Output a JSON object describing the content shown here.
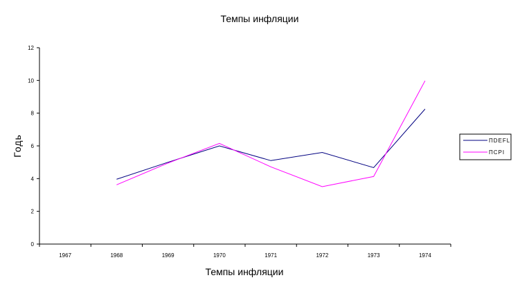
{
  "chart_data": {
    "type": "line",
    "title": "Темпы инфляции",
    "xlabel": "Темпы инфляции",
    "ylabel": "Годь",
    "categories": [
      "1967",
      "1968",
      "1969",
      "1970",
      "1971",
      "1972",
      "1973",
      "1974"
    ],
    "ylim": [
      0,
      12
    ],
    "yticks": [
      0,
      2,
      4,
      6,
      8,
      10,
      12
    ],
    "grid": false,
    "legend_position": "right",
    "series": [
      {
        "name": "ПDEFL",
        "color": "#000080",
        "values": [
          null,
          3.96,
          5.0,
          6.0,
          5.1,
          5.6,
          4.67,
          8.25
        ]
      },
      {
        "name": "ПCPI",
        "color": "#ff00ff",
        "values": [
          null,
          3.62,
          4.95,
          6.15,
          4.72,
          3.51,
          4.13,
          9.98
        ]
      }
    ]
  }
}
